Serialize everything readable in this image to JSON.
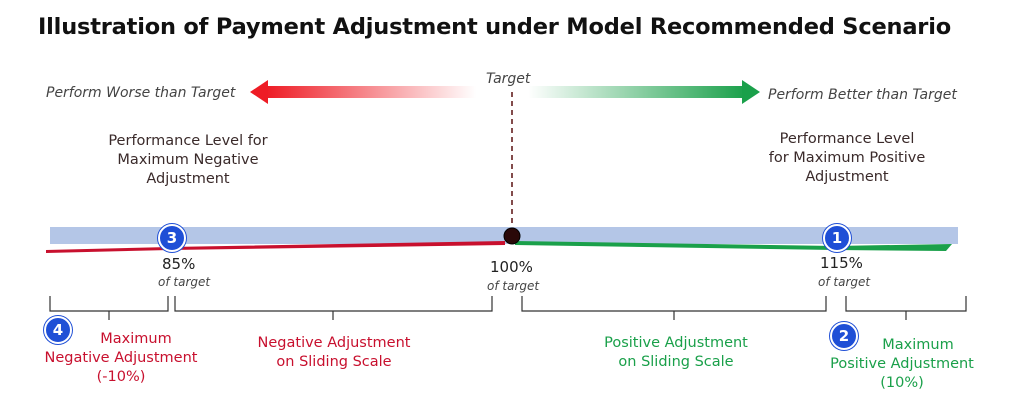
{
  "title": "Illustration of Payment Adjustment under Model Recommended Scenario",
  "worse_label": "Perform Worse than Target",
  "better_label": "Perform Better than Target",
  "target_label": "Target",
  "max_neg_level_label": "Performance Level for Maximum Negative Adjustment",
  "max_pos_level_label": "Performance Level for Maximum Positive Adjustment",
  "ticks": [
    {
      "value": "85%",
      "sub": "of target"
    },
    {
      "value": "100%",
      "sub": "of target"
    },
    {
      "value": "115%",
      "sub": "of target"
    }
  ],
  "badges": [
    "1",
    "2",
    "3",
    "4"
  ],
  "regions": {
    "max_negative": {
      "line1": "Maximum",
      "line2": "Negative Adjustment",
      "line3": "(-10%)"
    },
    "negative_sliding": {
      "line1": "Negative Adjustment",
      "line2": "on Sliding Scale"
    },
    "positive_sliding": {
      "line1": "Positive Adjustment",
      "line2": "on Sliding Scale"
    },
    "max_positive": {
      "line1": "Maximum",
      "line2": "Positive Adjustment",
      "line3": "(10%)"
    }
  },
  "colors": {
    "bar": "#b4c6e7",
    "negative": "#c8102e",
    "positive": "#1aa04a",
    "badge": "#1f4fd6"
  }
}
